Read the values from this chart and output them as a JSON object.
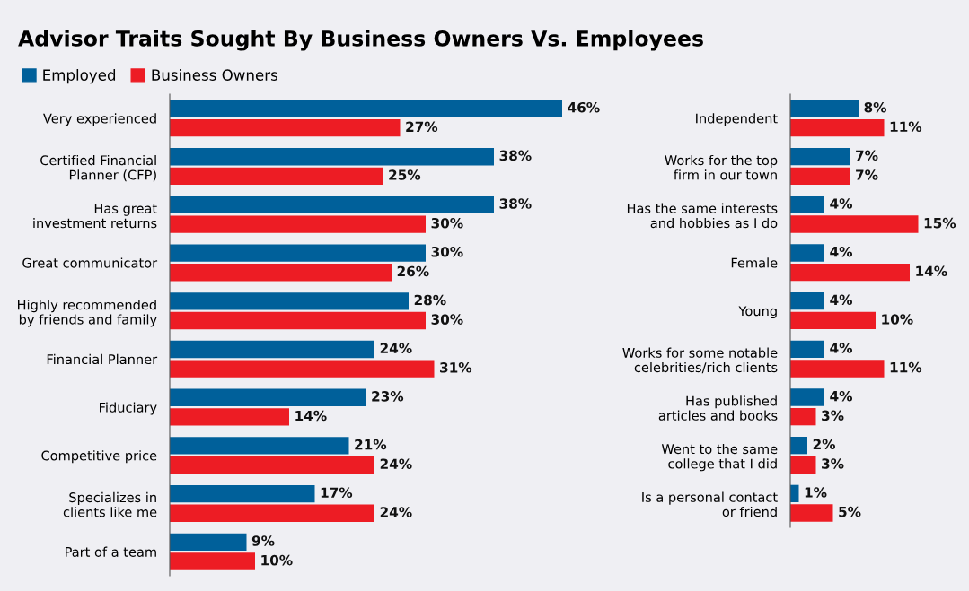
{
  "chart_data": [
    {
      "type": "bar",
      "orientation": "horizontal",
      "title": "Advisor Traits Sought By Business Owners Vs. Employees",
      "legend": "top left",
      "tick_labels": "y",
      "categories": [
        "Very experienced",
        "Certified Financial\nPlanner (CFP)",
        "Has great\ninvestment returns",
        "Great communicator",
        "Highly recommended\nby friends and family",
        "Financial Planner",
        "Fiduciary",
        "Competitive price",
        "Specializes in\nclients like me",
        "Part of a team"
      ],
      "series": [
        {
          "name": "Employed",
          "color": "#00609a",
          "values": [
            46,
            38,
            38,
            30,
            28,
            24,
            23,
            21,
            17,
            9
          ],
          "value_labels": [
            "46%",
            "38%",
            "38%",
            "30%",
            "28%",
            "24%",
            "23%",
            "21%",
            "17%",
            "9%"
          ]
        },
        {
          "name": "Business Owners",
          "color": "#ed1c24",
          "values": [
            27,
            25,
            30,
            26,
            30,
            31,
            14,
            24,
            24,
            10
          ],
          "value_labels": [
            "27%",
            "25%",
            "30%",
            "26%",
            "30%",
            "31%",
            "14%",
            "24%",
            "24%",
            "10%"
          ]
        }
      ]
    },
    {
      "type": "bar",
      "orientation": "horizontal",
      "tick_labels": "y",
      "categories": [
        "Independent",
        "Works for the top\nfirm in our town",
        "Has the same interests\nand hobbies as I do",
        "Female",
        "Young",
        "Works for some notable\ncelebrities/rich clients",
        "Has published\narticles and books",
        "Went to the same\ncollege that I did",
        "Is a personal contact\nor friend"
      ],
      "series": [
        {
          "color": "#00609a",
          "values": [
            8,
            7,
            4,
            4,
            4,
            4,
            4,
            2,
            1
          ],
          "value_labels": [
            "8%",
            "7%",
            "4%",
            "4%",
            "4%",
            "4%",
            "4%",
            "2%",
            "1%"
          ]
        },
        {
          "color": "#ed1c24",
          "values": [
            11,
            7,
            15,
            14,
            10,
            11,
            3,
            3,
            5
          ],
          "value_labels": [
            "11%",
            "7%",
            "15%",
            "14%",
            "10%",
            "11%",
            "3%",
            "3%",
            "5%"
          ]
        }
      ]
    }
  ]
}
